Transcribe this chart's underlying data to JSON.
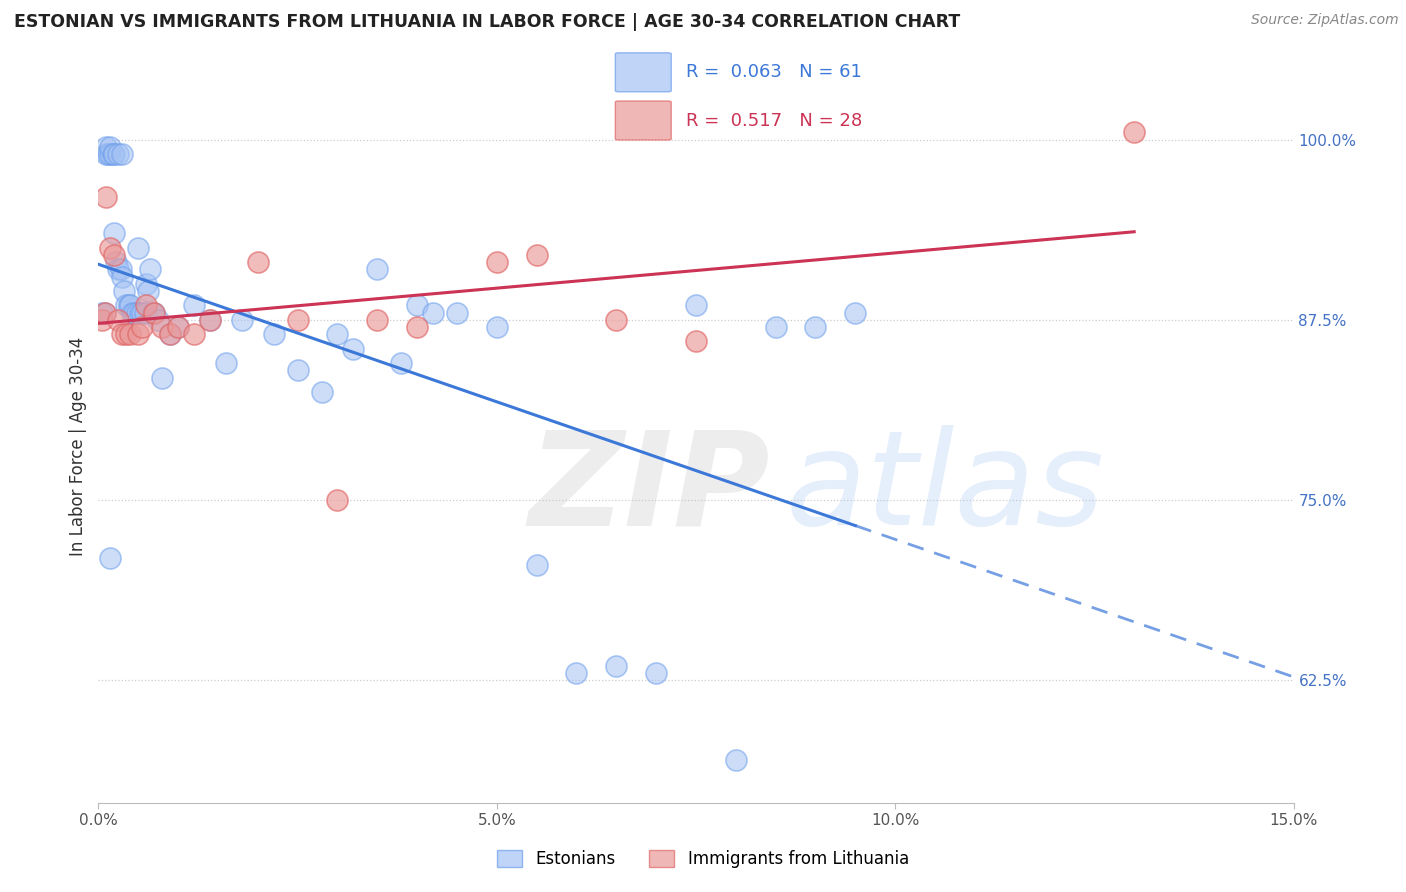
{
  "title": "ESTONIAN VS IMMIGRANTS FROM LITHUANIA IN LABOR FORCE | AGE 30-34 CORRELATION CHART",
  "source": "Source: ZipAtlas.com",
  "ylabel": "In Labor Force | Age 30-34",
  "watermark_zip": "ZIP",
  "watermark_atlas": "atlas",
  "xmin": 0.0,
  "xmax": 15.0,
  "ymin": 54.0,
  "ymax": 103.5,
  "yticks": [
    62.5,
    75.0,
    87.5,
    100.0
  ],
  "xticks": [
    0.0,
    5.0,
    10.0,
    15.0
  ],
  "legend_blue_r": "0.063",
  "legend_blue_n": "61",
  "legend_pink_r": "0.517",
  "legend_pink_n": "28",
  "blue_scatter_color": "#a4c2f4",
  "blue_edge_color": "#6d9eeb",
  "pink_scatter_color": "#ea9999",
  "pink_edge_color": "#e06666",
  "blue_line_color": "#3c78d8",
  "pink_line_color": "#cc3355",
  "blue_x": [
    0.05,
    0.08,
    0.1,
    0.1,
    0.12,
    0.15,
    0.15,
    0.18,
    0.2,
    0.2,
    0.22,
    0.25,
    0.25,
    0.28,
    0.3,
    0.3,
    0.32,
    0.35,
    0.38,
    0.4,
    0.42,
    0.45,
    0.48,
    0.5,
    0.52,
    0.55,
    0.58,
    0.6,
    0.62,
    0.65,
    0.68,
    0.7,
    0.75,
    0.8,
    0.9,
    1.0,
    1.2,
    1.4,
    1.6,
    1.8,
    2.2,
    2.5,
    3.0,
    3.2,
    3.5,
    4.0,
    4.5,
    5.0,
    6.5,
    7.0,
    7.5,
    8.0,
    8.5,
    9.0,
    9.5,
    2.8,
    3.8,
    5.5,
    6.0,
    4.2,
    0.15
  ],
  "blue_y": [
    88.0,
    88.0,
    99.0,
    99.5,
    99.0,
    99.0,
    99.5,
    99.0,
    93.5,
    99.0,
    91.5,
    91.0,
    99.0,
    91.0,
    90.5,
    99.0,
    89.5,
    88.5,
    88.5,
    88.5,
    88.0,
    88.0,
    88.0,
    92.5,
    88.0,
    88.0,
    88.0,
    90.0,
    89.5,
    91.0,
    88.0,
    88.0,
    87.5,
    83.5,
    86.5,
    87.0,
    88.5,
    87.5,
    84.5,
    87.5,
    86.5,
    84.0,
    86.5,
    85.5,
    91.0,
    88.5,
    88.0,
    87.0,
    63.5,
    63.0,
    88.5,
    57.0,
    87.0,
    87.0,
    88.0,
    82.5,
    84.5,
    70.5,
    63.0,
    88.0,
    71.0
  ],
  "pink_x": [
    0.05,
    0.08,
    0.1,
    0.15,
    0.2,
    0.25,
    0.3,
    0.35,
    0.4,
    0.5,
    0.55,
    0.6,
    0.7,
    0.8,
    0.9,
    1.0,
    1.2,
    1.4,
    2.0,
    2.5,
    3.0,
    3.5,
    4.0,
    5.0,
    5.5,
    6.5,
    7.5,
    13.0
  ],
  "pink_y": [
    87.5,
    88.0,
    96.0,
    92.5,
    92.0,
    87.5,
    86.5,
    86.5,
    86.5,
    86.5,
    87.0,
    88.5,
    88.0,
    87.0,
    86.5,
    87.0,
    86.5,
    87.5,
    91.5,
    87.5,
    75.0,
    87.5,
    87.0,
    91.5,
    92.0,
    87.5,
    86.0,
    100.5
  ]
}
